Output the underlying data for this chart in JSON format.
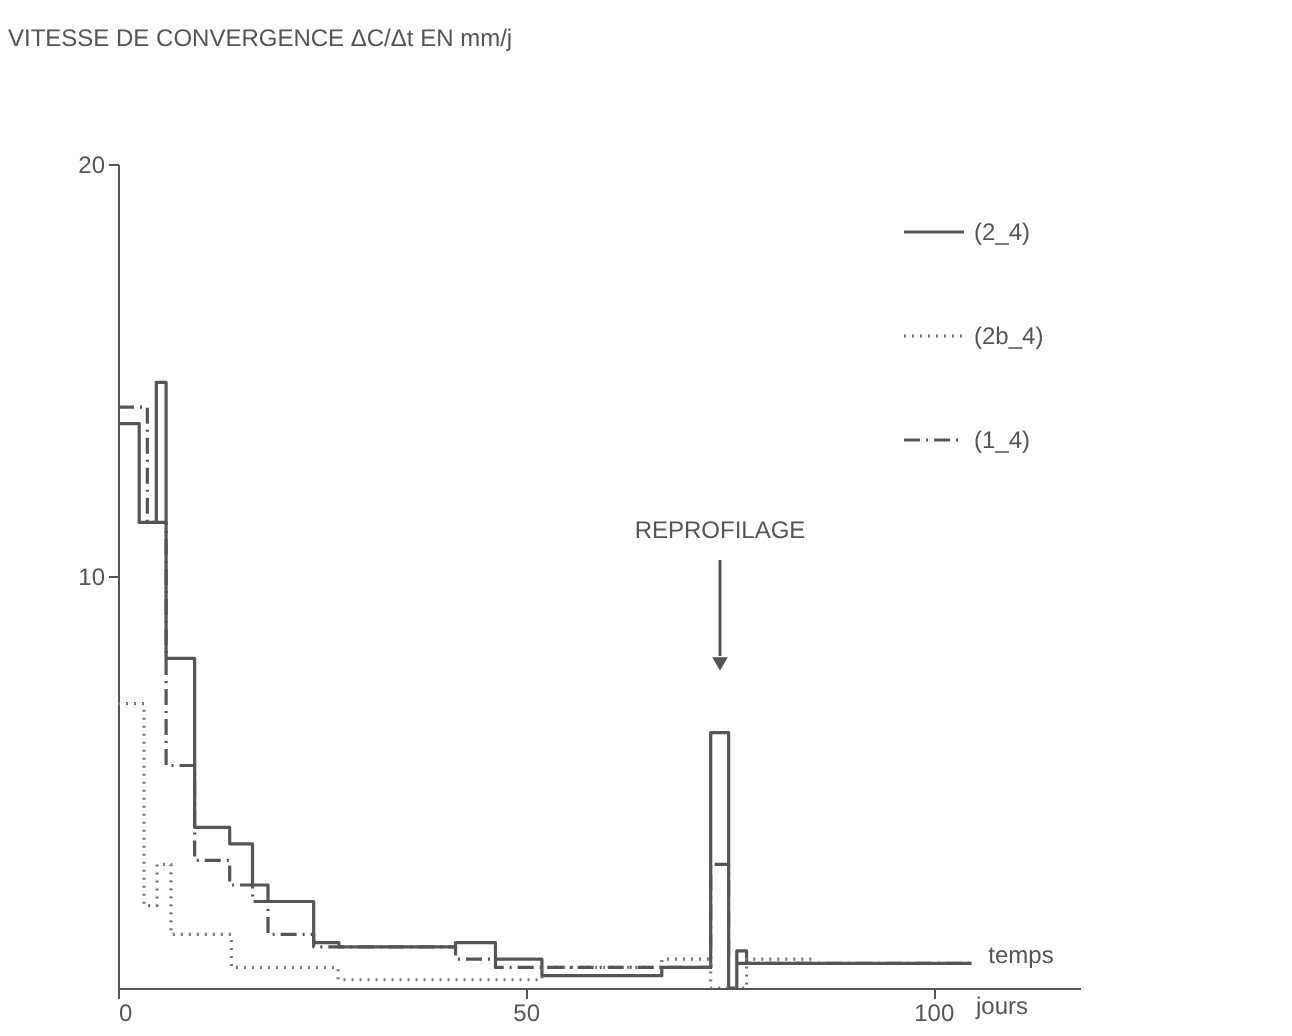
{
  "chart_data": {
    "type": "step",
    "ylabel": "VITESSE DE CONVERGENCE ΔC/Δt EN mm/j",
    "xlabel": "temps",
    "xlim": [
      0,
      118
    ],
    "xticks": [
      0,
      50,
      100
    ],
    "ylim": [
      0,
      20
    ],
    "yticks": [
      10,
      20
    ],
    "grid": false,
    "legend": "top right",
    "annotations": [
      "REPROFILAGE",
      "jours"
    ],
    "series": [
      {
        "name": "(2_4)",
        "color": "#555555",
        "line_style": "solid",
        "x": [
          0,
          2.6,
          4.7,
          5.9,
          9.4,
          13.7,
          16.5,
          18.4,
          24,
          27.1,
          41.4,
          46.3,
          52,
          66.7,
          72.7,
          74.9,
          75.9,
          77.1,
          104.7
        ],
        "values": [
          13.7,
          11.3,
          14.7,
          8.0,
          3.9,
          3.5,
          2.5,
          2.1,
          1.1,
          1.0,
          1.1,
          0.7,
          0.3,
          0.5,
          6.2,
          0,
          0.9,
          0.6,
          0.6
        ]
      },
      {
        "name": "(2b_4)",
        "color": "#777777",
        "line_style": "dotted",
        "x": [
          0,
          3.2,
          4.8,
          6.5,
          13.9,
          27,
          52,
          66.7,
          72.7,
          77.1,
          85.5
        ],
        "values": [
          6.9,
          2.0,
          3.0,
          1.3,
          0.5,
          0.2,
          0.5,
          0.7,
          0,
          0.7,
          0.7
        ]
      },
      {
        "name": "(1_4)",
        "color": "#555555",
        "line_style": "dashdot",
        "x": [
          0,
          3.6,
          5.9,
          9.4,
          13.7,
          16.5,
          18.4,
          24,
          27.1,
          41.4,
          46.3,
          52,
          72.7,
          74.9,
          104.7
        ],
        "values": [
          14.1,
          11.3,
          5.4,
          3.1,
          2.5,
          2.1,
          1.3,
          1.0,
          1.0,
          0.7,
          0.5,
          0.5,
          3.0,
          0.6,
          0.6
        ]
      }
    ]
  }
}
